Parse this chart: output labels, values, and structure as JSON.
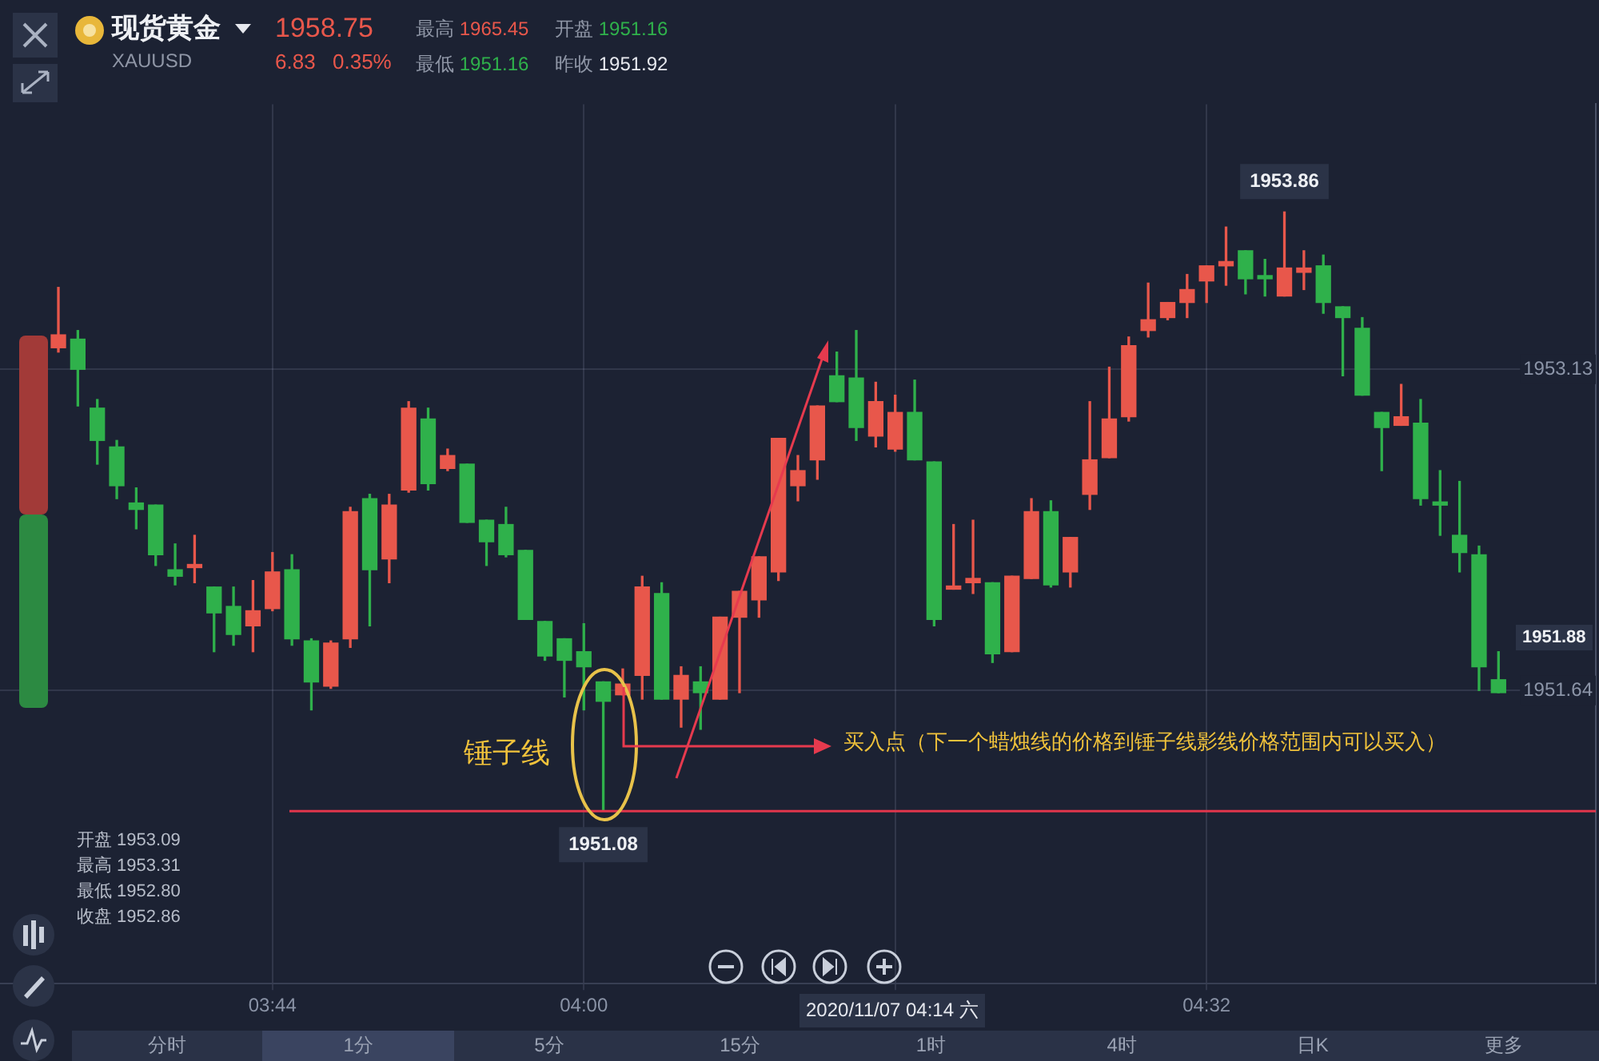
{
  "chart_data": {
    "type": "candlestick",
    "title": "现货黄金",
    "subtitle": "XAUUSD",
    "x": [
      "2020-11-07T03:33",
      "2020-11-07T03:34",
      "2020-11-07T03:35",
      "2020-11-07T03:36",
      "2020-11-07T03:37",
      "2020-11-07T03:38",
      "2020-11-07T03:39",
      "2020-11-07T03:40",
      "2020-11-07T03:41",
      "2020-11-07T03:42",
      "2020-11-07T03:43",
      "2020-11-07T03:44",
      "2020-11-07T03:45",
      "2020-11-07T03:46",
      "2020-11-07T03:47",
      "2020-11-07T03:48",
      "2020-11-07T03:49",
      "2020-11-07T03:50",
      "2020-11-07T03:51",
      "2020-11-07T03:52",
      "2020-11-07T03:53",
      "2020-11-07T03:54",
      "2020-11-07T03:55",
      "2020-11-07T03:56",
      "2020-11-07T03:57",
      "2020-11-07T03:58",
      "2020-11-07T03:59",
      "2020-11-07T04:00",
      "2020-11-07T04:01",
      "2020-11-07T04:02",
      "2020-11-07T04:03",
      "2020-11-07T04:04",
      "2020-11-07T04:05",
      "2020-11-07T04:06",
      "2020-11-07T04:07",
      "2020-11-07T04:08",
      "2020-11-07T04:09",
      "2020-11-07T04:10",
      "2020-11-07T04:11",
      "2020-11-07T04:12",
      "2020-11-07T04:13",
      "2020-11-07T04:14",
      "2020-11-07T04:15",
      "2020-11-07T04:16",
      "2020-11-07T04:17",
      "2020-11-07T04:18",
      "2020-11-07T04:19",
      "2020-11-07T04:20",
      "2020-11-07T04:21",
      "2020-11-07T04:22",
      "2020-11-07T04:23",
      "2020-11-07T04:24",
      "2020-11-07T04:25",
      "2020-11-07T04:26",
      "2020-11-07T04:27",
      "2020-11-07T04:28",
      "2020-11-07T04:29",
      "2020-11-07T04:30",
      "2020-11-07T04:31",
      "2020-11-07T04:32",
      "2020-11-07T04:33",
      "2020-11-07T04:34",
      "2020-11-07T04:35",
      "2020-11-07T04:36",
      "2020-11-07T04:37",
      "2020-11-07T04:38",
      "2020-11-07T04:39",
      "2020-11-07T04:40",
      "2020-11-07T04:41",
      "2020-11-07T04:42",
      "2020-11-07T04:43",
      "2020-11-07T04:44",
      "2020-11-07T04:45",
      "2020-11-07T04:46",
      "2020-11-07T04:47"
    ],
    "ohlc": [
      [
        1953.23,
        1953.51,
        1953.21,
        1953.29
      ],
      [
        1953.27,
        1953.31,
        1952.96,
        1953.13
      ],
      [
        1952.95,
        1952.99,
        1952.69,
        1952.8
      ],
      [
        1952.77,
        1952.8,
        1952.53,
        1952.59
      ],
      [
        1952.51,
        1952.58,
        1952.39,
        1952.48
      ],
      [
        1952.5,
        1952.5,
        1952.22,
        1952.27
      ],
      [
        1952.2,
        1952.32,
        1952.13,
        1952.17
      ],
      [
        1952.21,
        1952.36,
        1952.14,
        1952.22
      ],
      [
        1952.12,
        1952.12,
        1951.82,
        1952.0
      ],
      [
        1952.03,
        1952.12,
        1951.85,
        1951.9
      ],
      [
        1951.94,
        1952.15,
        1951.82,
        1952.01
      ],
      [
        1952.02,
        1952.28,
        1952.01,
        1952.19
      ],
      [
        1952.2,
        1952.27,
        1951.85,
        1951.88
      ],
      [
        1951.87,
        1951.88,
        1951.55,
        1951.68
      ],
      [
        1951.66,
        1951.87,
        1951.65,
        1951.86
      ],
      [
        1951.88,
        1952.49,
        1951.84,
        1952.47
      ],
      [
        1952.53,
        1952.55,
        1951.94,
        1952.2
      ],
      [
        1952.25,
        1952.55,
        1952.14,
        1952.5
      ],
      [
        1952.57,
        1952.98,
        1952.56,
        1952.95
      ],
      [
        1952.9,
        1952.95,
        1952.57,
        1952.6
      ],
      [
        1952.67,
        1952.76,
        1952.66,
        1952.73
      ],
      [
        1952.69,
        1952.69,
        1952.42,
        1952.42
      ],
      [
        1952.43,
        1952.43,
        1952.22,
        1952.33
      ],
      [
        1952.41,
        1952.49,
        1952.26,
        1952.27
      ],
      [
        1952.29,
        1952.29,
        1951.97,
        1951.97
      ],
      [
        1951.96,
        1951.96,
        1951.78,
        1951.8
      ],
      [
        1951.88,
        1951.88,
        1951.61,
        1951.78
      ],
      [
        1951.82,
        1951.95,
        1951.55,
        1951.75
      ],
      [
        1951.68,
        1951.68,
        1951.08,
        1951.59
      ],
      [
        1951.62,
        1951.74,
        1951.62,
        1951.67
      ],
      [
        1951.71,
        1952.17,
        1951.6,
        1952.12
      ],
      [
        1952.09,
        1952.14,
        1951.6,
        1951.6
      ],
      [
        1951.6,
        1951.75,
        1951.47,
        1951.71
      ],
      [
        1951.68,
        1951.75,
        1951.46,
        1951.63
      ],
      [
        1951.6,
        1951.98,
        1951.6,
        1951.98
      ],
      [
        1951.98,
        1952.1,
        1951.63,
        1952.1
      ],
      [
        1952.06,
        1952.26,
        1951.98,
        1952.26
      ],
      [
        1952.19,
        1952.81,
        1952.15,
        1952.81
      ],
      [
        1952.59,
        1952.73,
        1952.52,
        1952.66
      ],
      [
        1952.71,
        1952.96,
        1952.62,
        1952.96
      ],
      [
        1953.1,
        1953.21,
        1952.98,
        1952.98
      ],
      [
        1953.09,
        1953.31,
        1952.8,
        1952.86
      ],
      [
        1952.82,
        1953.07,
        1952.77,
        1952.98
      ],
      [
        1952.76,
        1953.01,
        1952.75,
        1952.93
      ],
      [
        1952.93,
        1953.08,
        1952.71,
        1952.71
      ],
      [
        1952.7,
        1952.7,
        1951.94,
        1951.97
      ],
      [
        1952.11,
        1952.41,
        1952.11,
        1952.12
      ],
      [
        1952.14,
        1952.43,
        1952.09,
        1952.16
      ],
      [
        1952.14,
        1952.14,
        1951.77,
        1951.81
      ],
      [
        1951.82,
        1952.17,
        1951.82,
        1952.17
      ],
      [
        1952.16,
        1952.53,
        1952.16,
        1952.47
      ],
      [
        1952.47,
        1952.52,
        1952.12,
        1952.13
      ],
      [
        1952.19,
        1952.35,
        1952.12,
        1952.35
      ],
      [
        1952.55,
        1952.98,
        1952.48,
        1952.71
      ],
      [
        1952.72,
        1953.14,
        1952.72,
        1952.9
      ],
      [
        1952.91,
        1953.28,
        1952.89,
        1953.24
      ],
      [
        1953.31,
        1953.53,
        1953.28,
        1953.36
      ],
      [
        1953.37,
        1953.44,
        1953.36,
        1953.44
      ],
      [
        1953.44,
        1953.57,
        1953.37,
        1953.5
      ],
      [
        1953.54,
        1953.61,
        1953.44,
        1953.61
      ],
      [
        1953.61,
        1953.79,
        1953.52,
        1953.63
      ],
      [
        1953.68,
        1953.68,
        1953.48,
        1953.55
      ],
      [
        1953.56,
        1953.64,
        1953.47,
        1953.55
      ],
      [
        1953.47,
        1953.86,
        1953.47,
        1953.6
      ],
      [
        1953.58,
        1953.68,
        1953.5,
        1953.6
      ],
      [
        1953.61,
        1953.66,
        1953.39,
        1953.44
      ],
      [
        1953.42,
        1953.42,
        1953.1,
        1953.37
      ],
      [
        1953.32,
        1953.37,
        1953.01,
        1953.01
      ],
      [
        1952.93,
        1952.93,
        1952.66,
        1952.86
      ],
      [
        1952.87,
        1953.06,
        1952.87,
        1952.91
      ],
      [
        1952.88,
        1952.99,
        1952.5,
        1952.53
      ],
      [
        1952.51,
        1952.66,
        1952.36,
        1952.5
      ],
      [
        1952.36,
        1952.61,
        1952.19,
        1952.28
      ],
      [
        1952.27,
        1952.31,
        1951.64,
        1951.75
      ],
      [
        1951.69,
        1951.82,
        1951.63,
        1951.63
      ]
    ],
    "colors": [
      "#e8574b",
      "#2fb14b",
      "#2fb14b",
      "#2fb14b",
      "#2fb14b",
      "#2fb14b",
      "#2fb14b",
      "#e8574b",
      "#2fb14b",
      "#2fb14b",
      "#e8574b",
      "#e8574b",
      "#2fb14b",
      "#2fb14b",
      "#e8574b",
      "#e8574b",
      "#2fb14b",
      "#e8574b",
      "#e8574b",
      "#2fb14b",
      "#e8574b",
      "#2fb14b",
      "#2fb14b",
      "#2fb14b",
      "#2fb14b",
      "#2fb14b",
      "#2fb14b",
      "#2fb14b",
      "#2fb14b",
      "#e8574b",
      "#e8574b",
      "#2fb14b",
      "#e8574b",
      "#2fb14b",
      "#e8574b",
      "#e8574b",
      "#e8574b",
      "#e8574b",
      "#e8574b",
      "#e8574b",
      "#2fb14b",
      "#2fb14b",
      "#e8574b",
      "#e8574b",
      "#2fb14b",
      "#2fb14b",
      "#e8574b",
      "#e8574b",
      "#2fb14b",
      "#e8574b",
      "#e8574b",
      "#2fb14b",
      "#e8574b",
      "#e8574b",
      "#e8574b",
      "#e8574b",
      "#e8574b",
      "#e8574b",
      "#e8574b",
      "#e8574b",
      "#e8574b",
      "#2fb14b",
      "#2fb14b",
      "#e8574b",
      "#e8574b",
      "#2fb14b",
      "#2fb14b",
      "#2fb14b",
      "#2fb14b",
      "#e8574b",
      "#2fb14b",
      "#2fb14b",
      "#2fb14b",
      "#2fb14b",
      "#2fb14b"
    ],
    "xlim": [
      "2020-11-07T03:30",
      "2020-11-07T04:52"
    ],
    "xticks": [
      {
        "value": "2020-11-07T03:44",
        "label": "03:44"
      },
      {
        "value": "2020-11-07T04:00",
        "label": "04:00"
      },
      {
        "value": "2020-11-07T04:16",
        "label": null
      },
      {
        "value": "2020-11-07T04:32",
        "label": "04:32"
      }
    ],
    "ylim": [
      1950.28,
      1954.36
    ],
    "yticks": [
      1951.64,
      1953.13
    ],
    "grid": true,
    "legend": false,
    "ref_lines": [
      {
        "axis": "y",
        "value": 1951.08,
        "color": "#e0364c"
      }
    ],
    "annotations": [
      "锤子线",
      {
        "text": "买入点（下一个蜡烛线的价格到锤子线影线价格范围内可以买入）",
        "x": "2020-11-07T04:02",
        "y": 1951.67
      },
      "开盘 1953.09",
      "最高 1953.31",
      "最低 1952.80",
      "收盘 1952.86",
      "2020/11/07 04:14 六",
      "1958.75",
      "6.83",
      "0.35%",
      "最高 1965.45",
      "最低 1951.16",
      "开盘 1951.16",
      "昨收 1951.92",
      "分时",
      "1分",
      "5分",
      "15分",
      "1时",
      "4时",
      "日K",
      "更多",
      {
        "text": "1953.86",
        "x": "2020-11-07T04:36",
        "y": 1953.86
      },
      {
        "text": "1951.08",
        "x": "2020-11-07T04:01",
        "y": 1951.08
      },
      "1951.88"
    ]
  }
}
